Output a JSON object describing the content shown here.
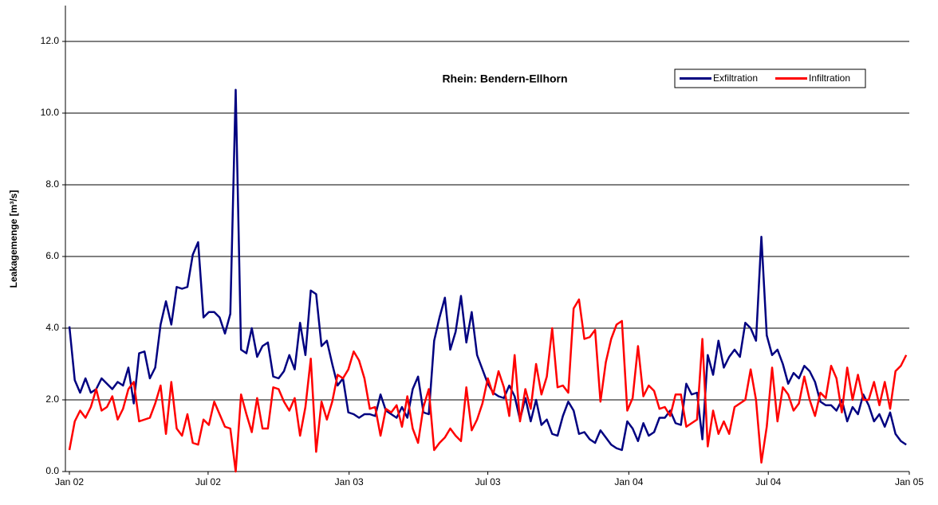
{
  "chart_data": {
    "type": "line",
    "title": "Rhein: Bendern-Ellhorn",
    "y_label": "Leakagemenge [m³/s]",
    "x": [
      0,
      7,
      14,
      21,
      28,
      35,
      42,
      49,
      56,
      63,
      70,
      77,
      84,
      91,
      98,
      105,
      112,
      119,
      126,
      133,
      140,
      147,
      154,
      161,
      168,
      175,
      182,
      189,
      196,
      203,
      210,
      217,
      224,
      231,
      238,
      245,
      252,
      259,
      266,
      273,
      280,
      287,
      294,
      301,
      308,
      315,
      322,
      329,
      336,
      343,
      350,
      357,
      364,
      371,
      378,
      385,
      392,
      399,
      406,
      413,
      420,
      427,
      434,
      441,
      448,
      455,
      462,
      469,
      476,
      483,
      490,
      497,
      504,
      511,
      518,
      525,
      532,
      539,
      546,
      553,
      560,
      567,
      574,
      581,
      588,
      595,
      602,
      609,
      616,
      623,
      630,
      637,
      644,
      651,
      658,
      665,
      672,
      679,
      686,
      693,
      700,
      707,
      714,
      721,
      728,
      735,
      742,
      749,
      756,
      763,
      770,
      777,
      784,
      791,
      798,
      805,
      812,
      819,
      826,
      833,
      840,
      847,
      854,
      861,
      868,
      875,
      882,
      889,
      896,
      903,
      910,
      917,
      924,
      931,
      938,
      945,
      952,
      959,
      966,
      973,
      980,
      987,
      994,
      1001,
      1008,
      1015,
      1022,
      1029,
      1036,
      1043,
      1050,
      1057,
      1064,
      1071,
      1078,
      1085,
      1092
    ],
    "series": [
      {
        "name": "Exfiltration",
        "color": "#000080",
        "values": [
          4.05,
          2.55,
          2.2,
          2.6,
          2.2,
          2.3,
          2.6,
          2.45,
          2.3,
          2.5,
          2.4,
          2.9,
          1.9,
          3.3,
          3.35,
          2.6,
          2.9,
          4.1,
          4.75,
          4.1,
          5.15,
          5.1,
          5.15,
          6.05,
          6.4,
          4.3,
          4.45,
          4.45,
          4.3,
          3.85,
          4.4,
          10.65,
          3.4,
          3.3,
          4.0,
          3.2,
          3.5,
          3.6,
          2.65,
          2.6,
          2.8,
          3.25,
          2.85,
          4.15,
          3.25,
          5.05,
          4.95,
          3.5,
          3.65,
          3.0,
          2.4,
          2.6,
          1.65,
          1.6,
          1.5,
          1.6,
          1.6,
          1.55,
          2.15,
          1.7,
          1.6,
          1.5,
          1.8,
          1.5,
          2.3,
          2.65,
          1.65,
          1.6,
          3.65,
          4.3,
          4.85,
          3.4,
          3.9,
          4.9,
          3.6,
          4.45,
          3.25,
          2.85,
          2.45,
          2.2,
          2.1,
          2.05,
          2.4,
          2.1,
          1.45,
          2.05,
          1.4,
          2.0,
          1.3,
          1.45,
          1.05,
          1.0,
          1.55,
          1.95,
          1.7,
          1.05,
          1.1,
          0.9,
          0.8,
          1.15,
          0.95,
          0.75,
          0.65,
          0.6,
          1.4,
          1.2,
          0.85,
          1.35,
          1.0,
          1.1,
          1.5,
          1.5,
          1.7,
          1.35,
          1.3,
          2.45,
          2.15,
          2.2,
          0.9,
          3.25,
          2.7,
          3.65,
          2.9,
          3.2,
          3.4,
          3.2,
          4.15,
          4.0,
          3.65,
          6.55,
          3.8,
          3.25,
          3.4,
          3.0,
          2.45,
          2.75,
          2.6,
          2.95,
          2.8,
          2.5,
          1.95,
          1.85,
          1.85,
          1.7,
          2.0,
          1.4,
          1.8,
          1.6,
          2.15,
          1.85,
          1.4,
          1.6,
          1.25,
          1.65,
          1.05,
          0.85,
          0.75
        ]
      },
      {
        "name": "Infiltration",
        "color": "#ff0000",
        "values": [
          0.6,
          1.4,
          1.7,
          1.5,
          1.8,
          2.3,
          1.7,
          1.8,
          2.1,
          1.45,
          1.75,
          2.3,
          2.5,
          1.4,
          1.45,
          1.5,
          1.9,
          2.4,
          1.05,
          2.5,
          1.2,
          1.0,
          1.6,
          0.8,
          0.75,
          1.45,
          1.3,
          1.95,
          1.6,
          1.25,
          1.2,
          0.0,
          2.15,
          1.6,
          1.1,
          2.05,
          1.2,
          1.2,
          2.35,
          2.3,
          1.95,
          1.7,
          2.05,
          1.0,
          1.8,
          3.15,
          0.55,
          1.95,
          1.45,
          1.95,
          2.7,
          2.6,
          2.85,
          3.35,
          3.1,
          2.6,
          1.75,
          1.8,
          1.0,
          1.75,
          1.65,
          1.85,
          1.25,
          2.1,
          1.2,
          0.8,
          1.8,
          2.3,
          0.6,
          0.8,
          0.95,
          1.2,
          1.0,
          0.85,
          2.35,
          1.15,
          1.45,
          1.9,
          2.6,
          2.15,
          2.8,
          2.35,
          1.55,
          3.25,
          1.4,
          2.3,
          1.75,
          3.0,
          2.15,
          2.65,
          4.0,
          2.35,
          2.4,
          2.2,
          4.55,
          4.8,
          3.7,
          3.75,
          3.95,
          1.95,
          3.05,
          3.7,
          4.1,
          4.2,
          1.7,
          2.05,
          3.5,
          2.1,
          2.4,
          2.25,
          1.75,
          1.8,
          1.55,
          2.15,
          2.15,
          1.25,
          1.35,
          1.45,
          3.7,
          0.7,
          1.7,
          1.05,
          1.4,
          1.05,
          1.8,
          1.9,
          2.0,
          2.85,
          2.0,
          0.25,
          1.25,
          2.9,
          1.4,
          2.35,
          2.15,
          1.7,
          1.9,
          2.65,
          2.0,
          1.55,
          2.2,
          2.05,
          2.95,
          2.6,
          1.65,
          2.9,
          2.0,
          2.7,
          2.0,
          2.0,
          2.5,
          1.85,
          2.5,
          1.75,
          2.8,
          2.95,
          3.25
        ]
      }
    ],
    "xlim": [
      0,
      1096
    ],
    "xticks": [
      {
        "value": 0,
        "label": "Jan 02"
      },
      {
        "value": 181,
        "label": "Jul 02"
      },
      {
        "value": 365,
        "label": "Jan 03"
      },
      {
        "value": 546,
        "label": "Jul 03"
      },
      {
        "value": 730,
        "label": "Jan 04"
      },
      {
        "value": 912,
        "label": "Jul 04"
      },
      {
        "value": 1096,
        "label": "Jan 05"
      }
    ],
    "ylim": [
      0,
      13
    ],
    "yticks": [
      {
        "value": 0,
        "label": "0.0"
      },
      {
        "value": 2,
        "label": "2.0"
      },
      {
        "value": 4,
        "label": "4.0"
      },
      {
        "value": 6,
        "label": "6.0"
      },
      {
        "value": 8,
        "label": "8.0"
      },
      {
        "value": 10,
        "label": "10.0"
      },
      {
        "value": 12,
        "label": "12.0"
      }
    ],
    "grid": true,
    "legend": "top-right"
  }
}
